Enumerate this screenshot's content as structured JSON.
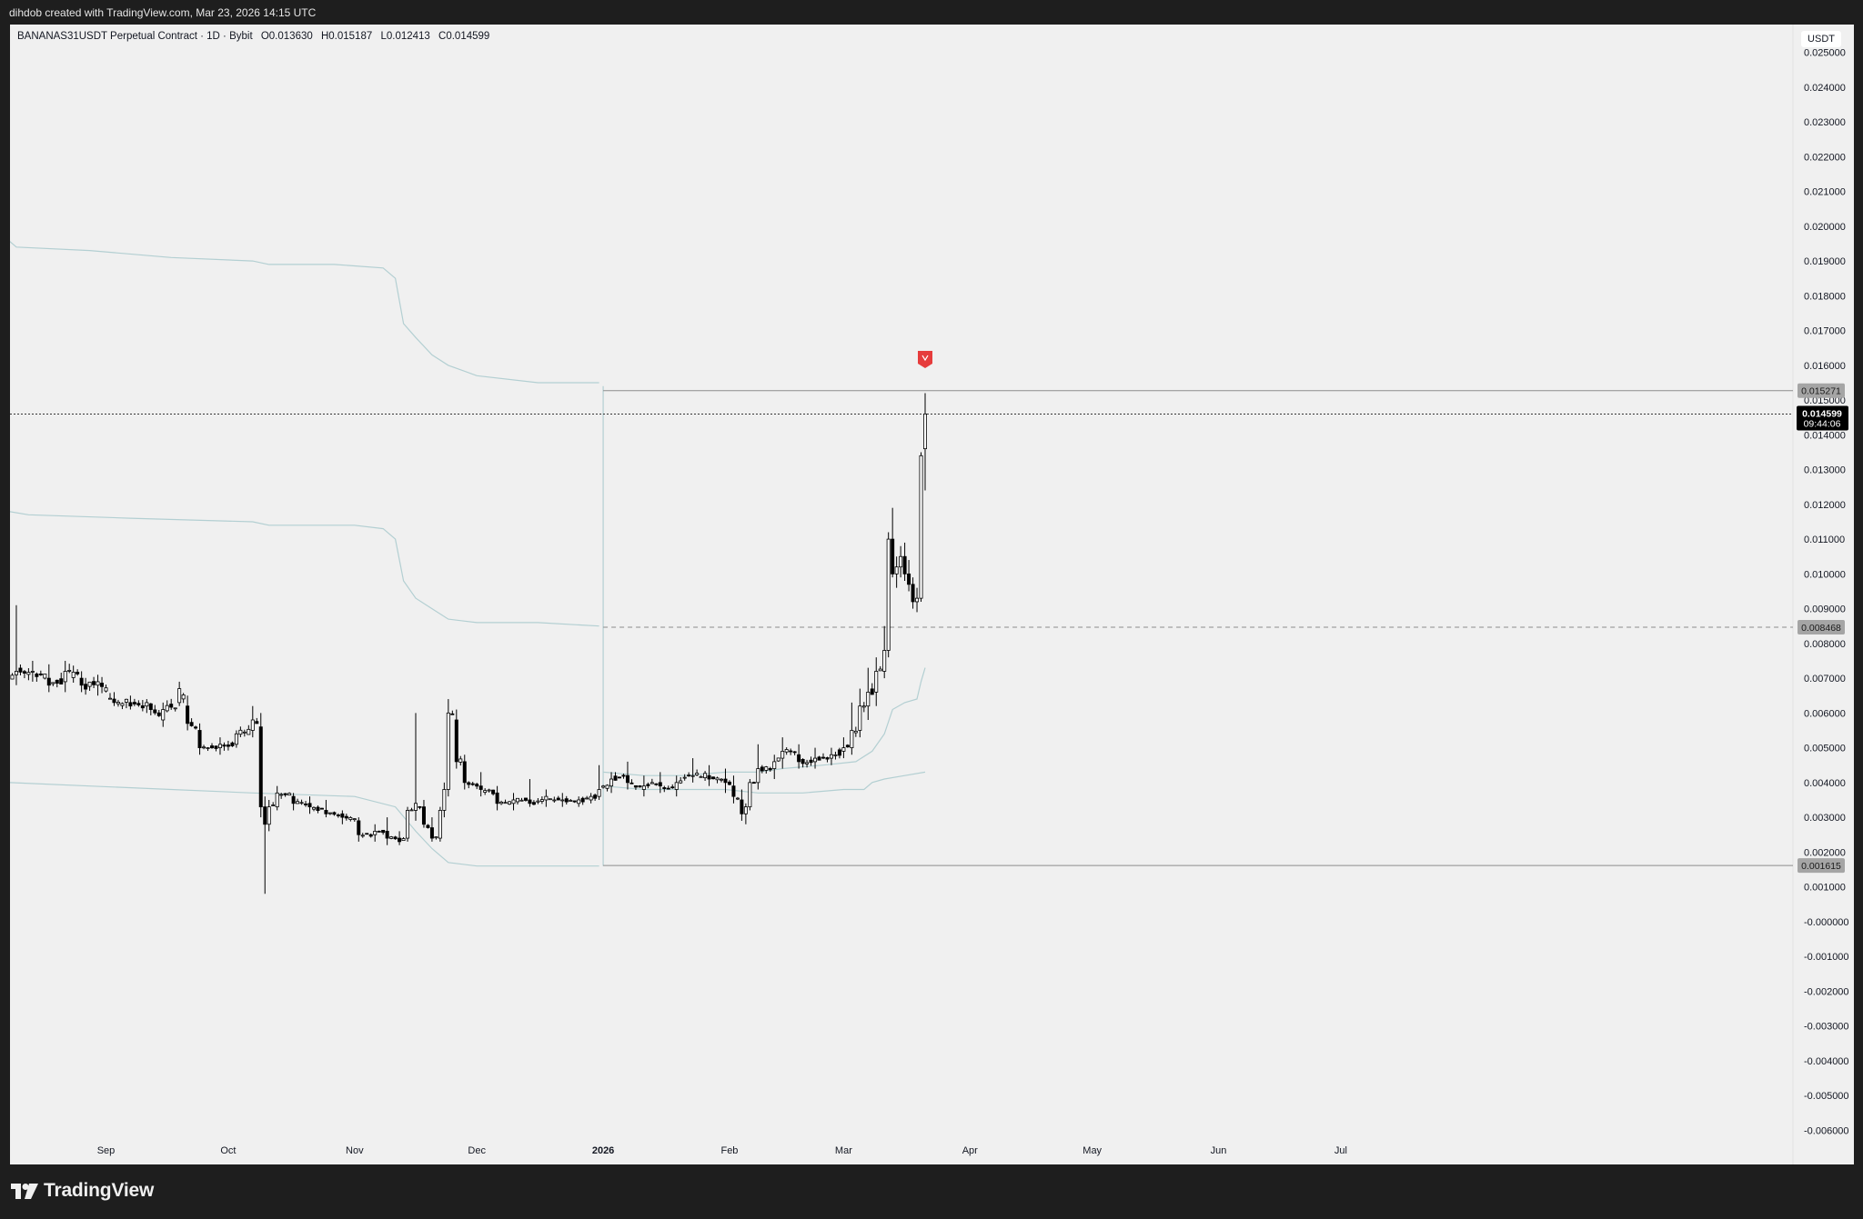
{
  "header": {
    "credit": "dihdob created with TradingView.com, Mar 23, 2026 14:15 UTC"
  },
  "legend": {
    "symbol": "BANANAS31USDT Perpetual Contract · 1D · Bybit",
    "open": "O0.013630",
    "high": "H0.015187",
    "low": "L0.012413",
    "close": "C0.014599"
  },
  "currency_button": "USDT",
  "footer": {
    "brand": "TradingView"
  },
  "colors": {
    "background": "#f0f0f0",
    "frame": "#1e1e1e",
    "candle": "#000000",
    "band": "#b3cfd2",
    "alert_marker": "#e63c3c",
    "last_price_tag": "#000000",
    "level_tag": "#a5a5a5"
  },
  "chart_data": {
    "type": "candlestick",
    "symbol": "BANANAS31USDT",
    "interval": "1D",
    "y_axis": {
      "min": -0.0062,
      "max": 0.0258,
      "ticks": [
        0.025,
        0.024,
        0.023,
        0.022,
        0.021,
        0.02,
        0.019,
        0.018,
        0.017,
        0.016,
        0.015,
        0.014,
        0.013,
        0.012,
        0.011,
        0.01,
        0.009,
        0.008,
        0.007,
        0.006,
        0.005,
        0.004,
        0.003,
        0.002,
        0.001,
        0.0,
        -0.001,
        -0.002,
        -0.003,
        -0.004,
        -0.005,
        -0.006
      ],
      "tick_labels": [
        "0.025000",
        "0.024000",
        "0.023000",
        "0.022000",
        "0.021000",
        "0.020000",
        "0.019000",
        "0.018000",
        "0.017000",
        "0.016000",
        "0.015000",
        "0.014000",
        "0.013000",
        "0.012000",
        "0.011000",
        "0.010000",
        "0.009000",
        "0.008000",
        "0.007000",
        "0.006000",
        "0.005000",
        "0.004000",
        "0.003000",
        "0.002000",
        "0.001000",
        "-0.000000",
        "-0.001000",
        "-0.002000",
        "-0.003000",
        "-0.004000",
        "-0.005000",
        "-0.006000"
      ]
    },
    "x_axis": {
      "start_day": 0,
      "end_day": 335,
      "month_ticks": [
        {
          "label": "Sep",
          "day": 24
        },
        {
          "label": "Oct",
          "day": 54
        },
        {
          "label": "Nov",
          "day": 85
        },
        {
          "label": "Dec",
          "day": 115
        },
        {
          "label": "2026",
          "day": 146,
          "bold": true
        },
        {
          "label": "Feb",
          "day": 177
        },
        {
          "label": "Mar",
          "day": 205
        },
        {
          "label": "Apr",
          "day": 236
        },
        {
          "label": "May",
          "day": 266
        },
        {
          "label": "Jun",
          "day": 297
        },
        {
          "label": "Jul",
          "day": 327
        }
      ]
    },
    "anchors": [
      [
        0,
        0.0069,
        0.0073,
        0.0066,
        0.0071
      ],
      [
        2,
        0.0071,
        0.0091,
        0.0068,
        0.0072
      ],
      [
        6,
        0.0072,
        0.0075,
        0.0069,
        0.0072
      ],
      [
        10,
        0.007,
        0.0074,
        0.0066,
        0.0068
      ],
      [
        14,
        0.0069,
        0.0075,
        0.0066,
        0.0072
      ],
      [
        18,
        0.007,
        0.0072,
        0.0066,
        0.0068
      ],
      [
        22,
        0.0068,
        0.0071,
        0.0065,
        0.0069
      ],
      [
        26,
        0.0064,
        0.0066,
        0.0062,
        0.0063
      ],
      [
        30,
        0.0063,
        0.0065,
        0.0061,
        0.0062
      ],
      [
        34,
        0.0062,
        0.0064,
        0.006,
        0.0063
      ],
      [
        38,
        0.0058,
        0.0063,
        0.0056,
        0.0061
      ],
      [
        42,
        0.0063,
        0.0069,
        0.0062,
        0.0067
      ],
      [
        44,
        0.0062,
        0.0065,
        0.0055,
        0.0057
      ],
      [
        47,
        0.0055,
        0.0057,
        0.0048,
        0.005
      ],
      [
        52,
        0.005,
        0.0053,
        0.0048,
        0.0051
      ],
      [
        56,
        0.0051,
        0.0055,
        0.005,
        0.0054
      ],
      [
        60,
        0.0055,
        0.0062,
        0.0053,
        0.0058
      ],
      [
        62,
        0.0056,
        0.006,
        0.003,
        0.0033
      ],
      [
        63,
        0.0033,
        0.0036,
        0.0008,
        0.0028
      ],
      [
        64,
        0.0028,
        0.0035,
        0.0026,
        0.0033
      ],
      [
        66,
        0.0033,
        0.0039,
        0.0032,
        0.0037
      ],
      [
        70,
        0.0036,
        0.0037,
        0.0032,
        0.0034
      ],
      [
        74,
        0.0034,
        0.0036,
        0.0031,
        0.0033
      ],
      [
        78,
        0.0032,
        0.0035,
        0.003,
        0.0031
      ],
      [
        82,
        0.0031,
        0.0032,
        0.0028,
        0.003
      ],
      [
        86,
        0.0029,
        0.003,
        0.0023,
        0.0025
      ],
      [
        90,
        0.0025,
        0.0028,
        0.0023,
        0.0026
      ],
      [
        93,
        0.0026,
        0.003,
        0.0022,
        0.0024
      ],
      [
        96,
        0.0024,
        0.0026,
        0.0022,
        0.0023
      ],
      [
        98,
        0.0024,
        0.0033,
        0.0023,
        0.0032
      ],
      [
        100,
        0.0032,
        0.006,
        0.0029,
        0.0034
      ],
      [
        102,
        0.0033,
        0.0035,
        0.0027,
        0.0028
      ],
      [
        104,
        0.0027,
        0.003,
        0.0023,
        0.0024
      ],
      [
        106,
        0.0024,
        0.0033,
        0.0023,
        0.0032
      ],
      [
        107,
        0.0032,
        0.004,
        0.003,
        0.0038
      ],
      [
        108,
        0.0038,
        0.0064,
        0.0036,
        0.006
      ],
      [
        110,
        0.0058,
        0.0061,
        0.0044,
        0.0046
      ],
      [
        112,
        0.0046,
        0.0048,
        0.0038,
        0.004
      ],
      [
        116,
        0.0039,
        0.0043,
        0.0036,
        0.0038
      ],
      [
        120,
        0.0037,
        0.0039,
        0.0032,
        0.0034
      ],
      [
        124,
        0.0034,
        0.0037,
        0.0032,
        0.0035
      ],
      [
        128,
        0.0035,
        0.0041,
        0.0033,
        0.0034
      ],
      [
        132,
        0.0035,
        0.0038,
        0.0033,
        0.0036
      ],
      [
        136,
        0.0035,
        0.0037,
        0.0033,
        0.0035
      ],
      [
        140,
        0.0034,
        0.0036,
        0.0033,
        0.0035
      ],
      [
        143,
        0.0035,
        0.0037,
        0.0034,
        0.0036
      ],
      [
        145,
        0.0036,
        0.0045,
        0.0035,
        0.0038
      ],
      [
        148,
        0.0039,
        0.0043,
        0.0037,
        0.0041
      ],
      [
        152,
        0.0042,
        0.0046,
        0.0038,
        0.004
      ],
      [
        156,
        0.0038,
        0.0042,
        0.0036,
        0.0039
      ],
      [
        160,
        0.004,
        0.0043,
        0.0037,
        0.0039
      ],
      [
        164,
        0.0038,
        0.0042,
        0.0036,
        0.004
      ],
      [
        168,
        0.0042,
        0.0047,
        0.004,
        0.0042
      ],
      [
        172,
        0.0042,
        0.0045,
        0.0039,
        0.0041
      ],
      [
        176,
        0.0041,
        0.0044,
        0.0037,
        0.004
      ],
      [
        178,
        0.0039,
        0.0042,
        0.0034,
        0.0036
      ],
      [
        180,
        0.0035,
        0.0038,
        0.0029,
        0.0031
      ],
      [
        181,
        0.0031,
        0.0034,
        0.0028,
        0.0033
      ],
      [
        182,
        0.0033,
        0.0041,
        0.0032,
        0.004
      ],
      [
        184,
        0.004,
        0.0051,
        0.0038,
        0.0044
      ],
      [
        188,
        0.0044,
        0.0048,
        0.0041,
        0.0046
      ],
      [
        190,
        0.0047,
        0.0053,
        0.0044,
        0.0049
      ],
      [
        194,
        0.0048,
        0.0051,
        0.0044,
        0.0046
      ],
      [
        198,
        0.0046,
        0.005,
        0.0044,
        0.0047
      ],
      [
        202,
        0.0047,
        0.005,
        0.0045,
        0.0048
      ],
      [
        205,
        0.0049,
        0.0053,
        0.0047,
        0.005
      ],
      [
        207,
        0.005,
        0.0063,
        0.0048,
        0.0055
      ],
      [
        209,
        0.0055,
        0.0067,
        0.0053,
        0.0062
      ],
      [
        211,
        0.0062,
        0.0073,
        0.0058,
        0.0066
      ],
      [
        213,
        0.0066,
        0.0076,
        0.0062,
        0.0072
      ],
      [
        215,
        0.0072,
        0.0085,
        0.007,
        0.0078
      ],
      [
        216,
        0.0078,
        0.0112,
        0.0076,
        0.011
      ],
      [
        217,
        0.011,
        0.0119,
        0.0099,
        0.01
      ],
      [
        218,
        0.01,
        0.0105,
        0.0096,
        0.0102
      ],
      [
        219,
        0.0102,
        0.0108,
        0.0099,
        0.0105
      ],
      [
        220,
        0.0105,
        0.0109,
        0.0098,
        0.01
      ],
      [
        221,
        0.01,
        0.0104,
        0.0095,
        0.0097
      ],
      [
        222,
        0.0097,
        0.0099,
        0.009,
        0.0092
      ],
      [
        223,
        0.0092,
        0.0096,
        0.0089,
        0.0093
      ],
      [
        224,
        0.0093,
        0.0135,
        0.0092,
        0.0134
      ],
      [
        225,
        0.0136,
        0.0152,
        0.0124,
        0.0146
      ]
    ],
    "bands": [
      {
        "name": "upper",
        "points": [
          [
            0,
            0.0196
          ],
          [
            2,
            0.0194
          ],
          [
            20,
            0.0193
          ],
          [
            40,
            0.0191
          ],
          [
            60,
            0.019
          ],
          [
            64,
            0.0189
          ],
          [
            80,
            0.0189
          ],
          [
            92,
            0.0188
          ],
          [
            95,
            0.0185
          ],
          [
            97,
            0.0172
          ],
          [
            100,
            0.0168
          ],
          [
            104,
            0.0163
          ],
          [
            108,
            0.016
          ],
          [
            115,
            0.0157
          ],
          [
            130,
            0.0155
          ],
          [
            145,
            0.0155
          ]
        ]
      },
      {
        "name": "middle",
        "points": [
          [
            0,
            0.0118
          ],
          [
            5,
            0.0117
          ],
          [
            30,
            0.0116
          ],
          [
            60,
            0.0115
          ],
          [
            64,
            0.0114
          ],
          [
            85,
            0.0114
          ],
          [
            92,
            0.0113
          ],
          [
            95,
            0.011
          ],
          [
            97,
            0.0098
          ],
          [
            100,
            0.0093
          ],
          [
            104,
            0.009
          ],
          [
            108,
            0.0087
          ],
          [
            115,
            0.0086
          ],
          [
            130,
            0.0086
          ],
          [
            145,
            0.0085
          ]
        ]
      },
      {
        "name": "lower",
        "points": [
          [
            0,
            0.004
          ],
          [
            20,
            0.0039
          ],
          [
            40,
            0.0038
          ],
          [
            60,
            0.0037
          ],
          [
            85,
            0.0036
          ],
          [
            95,
            0.0033
          ],
          [
            100,
            0.0026
          ],
          [
            104,
            0.0021
          ],
          [
            108,
            0.0017
          ],
          [
            115,
            0.0016
          ],
          [
            145,
            0.0016
          ]
        ]
      },
      {
        "name": "upper-2026",
        "points": [
          [
            146,
            0.0043
          ],
          [
            156,
            0.0042
          ],
          [
            166,
            0.0042
          ],
          [
            176,
            0.0043
          ],
          [
            184,
            0.0043
          ],
          [
            190,
            0.0044
          ],
          [
            200,
            0.0045
          ],
          [
            208,
            0.0046
          ],
          [
            212,
            0.0049
          ],
          [
            215,
            0.0054
          ],
          [
            217,
            0.0061
          ],
          [
            220,
            0.0063
          ],
          [
            223,
            0.0064
          ],
          [
            224,
            0.0069
          ],
          [
            225,
            0.0073
          ]
        ]
      },
      {
        "name": "lower-2026",
        "points": [
          [
            146,
            0.0039
          ],
          [
            156,
            0.0038
          ],
          [
            166,
            0.0038
          ],
          [
            176,
            0.0038
          ],
          [
            184,
            0.0037
          ],
          [
            195,
            0.0037
          ],
          [
            205,
            0.0038
          ],
          [
            210,
            0.0038
          ],
          [
            212,
            0.004
          ],
          [
            215,
            0.0041
          ],
          [
            220,
            0.0042
          ],
          [
            225,
            0.0043
          ]
        ]
      }
    ],
    "levels": [
      {
        "label": "0.015271",
        "value": 0.015271,
        "from_day": 146,
        "style": "solid"
      },
      {
        "label": "0.008468",
        "value": 0.008468,
        "from_day": 146,
        "style": "dashed"
      },
      {
        "label": "0.001615",
        "value": 0.001615,
        "from_day": 146,
        "style": "solid"
      }
    ],
    "anchor_line": {
      "day": 146,
      "from": 0.0016,
      "to": 0.0154
    },
    "last_price": {
      "value": 0.014599,
      "label": "0.014599",
      "countdown": "09:44:06"
    },
    "alert_marker": {
      "day": 225,
      "value": 0.0161
    }
  }
}
